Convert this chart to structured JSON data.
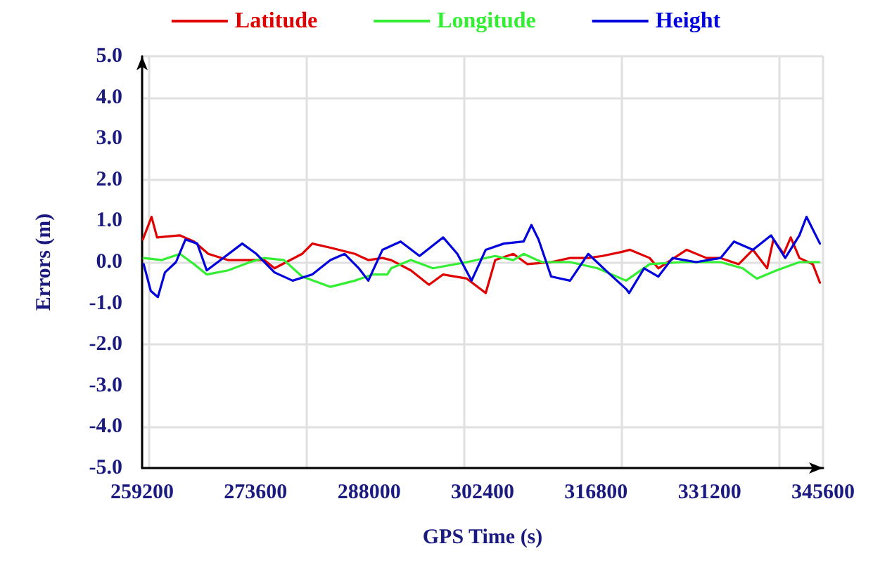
{
  "chart_data": {
    "type": "line",
    "xlabel": "GPS Time (s)",
    "ylabel": "Errors (m)",
    "xlim": [
      259200,
      345600
    ],
    "xticks": [
      259200,
      273600,
      288000,
      302400,
      316800,
      331200,
      345600
    ],
    "ylim": [
      -5,
      5
    ],
    "yticks": [
      {
        "value": 5,
        "label": "5.0"
      },
      {
        "value": 4,
        "label": "4.0"
      },
      {
        "value": 3,
        "label": "3.0"
      },
      {
        "value": 2,
        "label": "2.0"
      },
      {
        "value": 1,
        "label": "1.0"
      },
      {
        "value": 0,
        "label": "0.0"
      },
      {
        "value": -1,
        "label": "-1.0"
      },
      {
        "value": -2,
        "label": "-2.0"
      },
      {
        "value": -3,
        "label": "-3.0"
      },
      {
        "value": -4,
        "label": "-4.0"
      },
      {
        "value": -5,
        "label": "-5.0"
      }
    ],
    "grid": true,
    "legend": "top",
    "line_style": "solid",
    "series": [
      {
        "name": "Latitude",
        "color": "#e00000",
        "x": [
          259300,
          260400,
          261100,
          264000,
          265800,
          267600,
          270100,
          272900,
          274700,
          276000,
          279500,
          280800,
          283100,
          286200,
          287900,
          289700,
          290800,
          293300,
          295600,
          297400,
          300400,
          302800,
          304000,
          306300,
          308100,
          311100,
          313500,
          315800,
          317600,
          320100,
          321100,
          323600,
          324700,
          328300,
          330800,
          332600,
          334900,
          336700,
          338500,
          339300,
          340600,
          341500,
          342600,
          344300,
          345200
        ],
        "values": [
          0.55,
          1.1,
          0.6,
          0.65,
          0.5,
          0.2,
          0.05,
          0.05,
          0.05,
          -0.15,
          0.2,
          0.45,
          0.35,
          0.2,
          0.05,
          0.1,
          0.05,
          -0.2,
          -0.55,
          -0.3,
          -0.4,
          -0.75,
          0.05,
          0.2,
          -0.05,
          0,
          0.1,
          0.1,
          0.15,
          0.25,
          0.3,
          0.1,
          -0.15,
          0.3,
          0.1,
          0.1,
          -0.05,
          0.3,
          -0.15,
          0.55,
          0.2,
          0.6,
          0.1,
          -0.05,
          -0.5
        ]
      },
      {
        "name": "Longitude",
        "color": "#33ee33",
        "x": [
          259400,
          261700,
          264000,
          265800,
          267400,
          270100,
          272900,
          274700,
          277200,
          279500,
          283100,
          286200,
          288500,
          290300,
          290800,
          293300,
          296100,
          300400,
          304000,
          306300,
          307600,
          309900,
          313500,
          317000,
          320600,
          323600,
          327700,
          332600,
          335400,
          337200,
          339700,
          342600,
          345100
        ],
        "values": [
          0.1,
          0.05,
          0.2,
          -0.05,
          -0.3,
          -0.2,
          0,
          0.1,
          0.05,
          -0.35,
          -0.6,
          -0.45,
          -0.3,
          -0.3,
          -0.15,
          0.05,
          -0.15,
          0,
          0.15,
          0.05,
          0.2,
          0,
          0,
          -0.15,
          -0.45,
          -0.05,
          0,
          0,
          -0.15,
          -0.4,
          -0.2,
          0,
          0
        ]
      },
      {
        "name": "Height",
        "color": "#0000dd",
        "x": [
          259400,
          260300,
          261200,
          262100,
          263500,
          264700,
          266200,
          267400,
          268800,
          271900,
          273700,
          276000,
          278300,
          280800,
          283100,
          284900,
          286700,
          287900,
          289700,
          292000,
          294400,
          297400,
          299200,
          301000,
          302800,
          305100,
          307600,
          308600,
          309500,
          311100,
          313500,
          315800,
          318300,
          320600,
          321000,
          322900,
          324700,
          326500,
          329500,
          332600,
          334300,
          336700,
          339000,
          340800,
          342600,
          343500,
          345200
        ],
        "values": [
          -0.05,
          -0.7,
          -0.85,
          -0.25,
          0,
          0.55,
          0.45,
          -0.2,
          0,
          0.45,
          0.2,
          -0.25,
          -0.45,
          -0.3,
          0.05,
          0.2,
          -0.15,
          -0.45,
          0.3,
          0.5,
          0.15,
          0.6,
          0.2,
          -0.45,
          0.3,
          0.45,
          0.5,
          0.9,
          0.55,
          -0.35,
          -0.45,
          0.2,
          -0.25,
          -0.65,
          -0.75,
          -0.15,
          -0.35,
          0.1,
          0,
          0.1,
          0.5,
          0.3,
          0.65,
          0.1,
          0.65,
          1.1,
          0.45
        ]
      }
    ]
  }
}
